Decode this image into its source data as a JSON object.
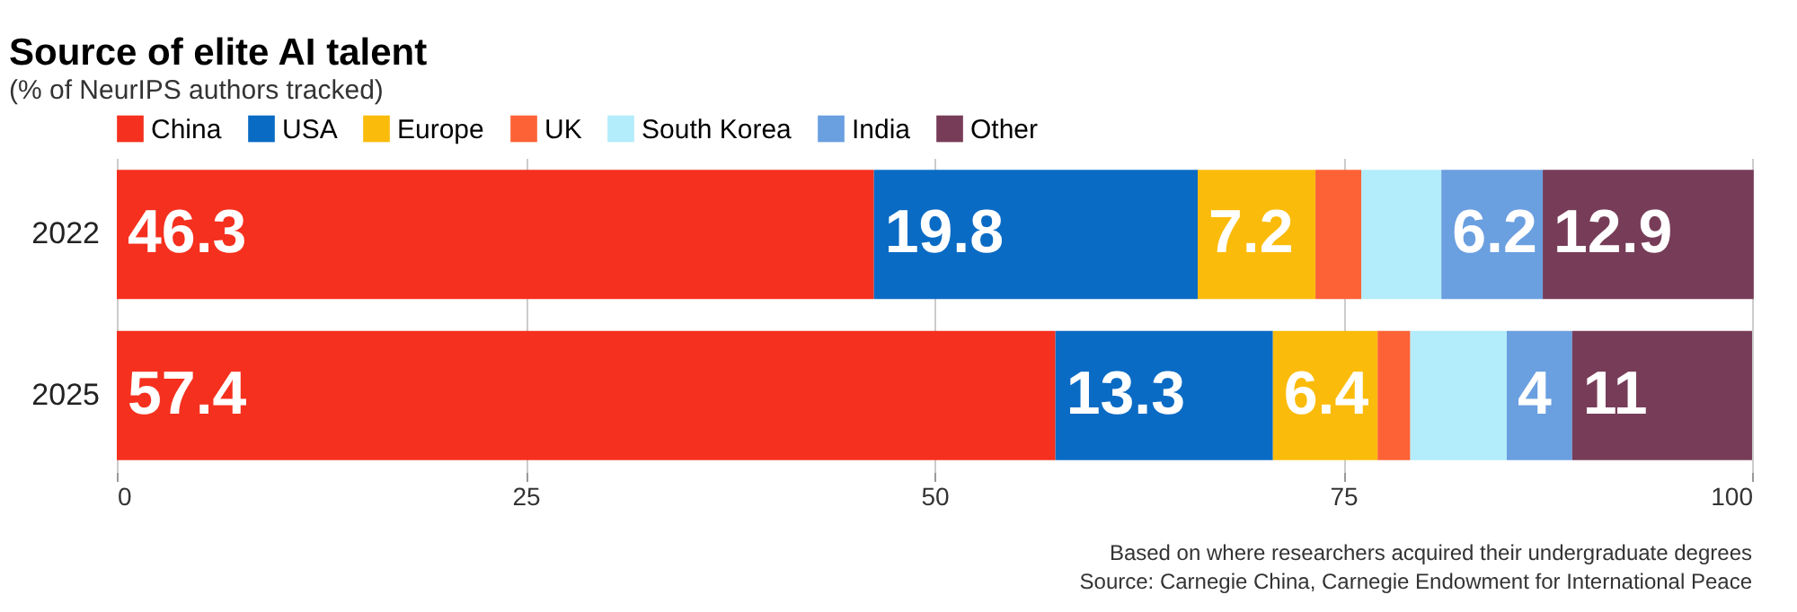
{
  "chart_data": {
    "type": "bar",
    "title": "Source of elite AI talent",
    "subtitle": "(% of NeurIPS authors tracked)",
    "categories": [
      "2022",
      "2025"
    ],
    "stacked": true,
    "orientation": "horizontal",
    "xlim": [
      0,
      100
    ],
    "xticks": [
      0,
      25,
      50,
      75,
      100
    ],
    "grid": "x",
    "legend": "top left",
    "series": [
      {
        "name": "China",
        "color": "#f5301e",
        "values": [
          46.3,
          57.4
        ],
        "value_labels": [
          "46.3",
          "57.4"
        ]
      },
      {
        "name": "USA",
        "color": "#0a6bc4",
        "values": [
          19.8,
          13.3
        ],
        "value_labels": [
          "19.8",
          "13.3"
        ]
      },
      {
        "name": "Europe",
        "color": "#fbbb0b",
        "values": [
          7.2,
          6.4
        ],
        "value_labels": [
          "7.2",
          "6.4"
        ]
      },
      {
        "name": "UK",
        "color": "#fd6236",
        "values": [
          2.8,
          2.0
        ],
        "value_labels": [
          null,
          null
        ]
      },
      {
        "name": "South Korea",
        "color": "#b3ecfb",
        "values": [
          4.9,
          5.9
        ],
        "value_labels": [
          null,
          null
        ]
      },
      {
        "name": "India",
        "color": "#6a9fe0",
        "values": [
          6.2,
          4
        ],
        "value_labels": [
          "6.2",
          "4"
        ]
      },
      {
        "name": "Other",
        "color": "#773d58",
        "values": [
          12.9,
          11
        ],
        "value_labels": [
          "12.9",
          "11"
        ]
      }
    ],
    "annotations": [
      "Based on where researchers acquired their undergraduate degrees",
      "Source: Carnegie China, Carnegie Endowment for International Peace"
    ]
  }
}
